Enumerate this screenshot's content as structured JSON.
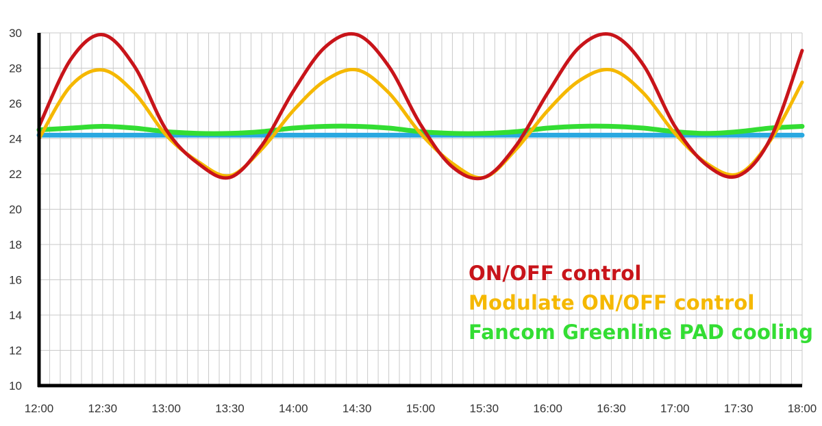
{
  "chart_data": {
    "type": "line",
    "title": "",
    "xlabel": "",
    "ylabel": "",
    "x_ticks": [
      "12:00",
      "12:30",
      "13:00",
      "13:30",
      "14:00",
      "14:30",
      "15:00",
      "15:30",
      "16:00",
      "16:30",
      "17:00",
      "17:30",
      "18:00"
    ],
    "xlim": [
      "12:00",
      "18:00"
    ],
    "y_ticks": [
      10,
      12,
      14,
      16,
      18,
      20,
      22,
      24,
      26,
      28,
      30
    ],
    "ylim": [
      10,
      30
    ],
    "grid": true,
    "legend_position": "bottom-right",
    "x": [
      "12:00",
      "12:15",
      "12:30",
      "12:45",
      "13:00",
      "13:15",
      "13:30",
      "13:45",
      "14:00",
      "14:15",
      "14:30",
      "14:45",
      "15:00",
      "15:15",
      "15:30",
      "15:45",
      "16:00",
      "16:15",
      "16:30",
      "16:45",
      "17:00",
      "17:15",
      "17:30",
      "17:45",
      "18:00"
    ],
    "series": [
      {
        "name": "ON/OFF control",
        "color": "#c8141a",
        "values": [
          24.7,
          28.5,
          29.9,
          28.1,
          24.5,
          22.6,
          21.8,
          23.6,
          26.7,
          29.2,
          29.9,
          28.1,
          24.8,
          22.4,
          21.8,
          23.6,
          26.6,
          29.2,
          29.9,
          28.2,
          24.7,
          22.5,
          21.9,
          24.0,
          29.0
        ]
      },
      {
        "name": "Modulate ON/OFF control",
        "color": "#f5b800",
        "values": [
          24.0,
          27.0,
          27.9,
          26.6,
          24.2,
          22.7,
          21.9,
          23.4,
          25.6,
          27.3,
          27.9,
          26.6,
          24.3,
          22.6,
          21.8,
          23.4,
          25.6,
          27.3,
          27.9,
          26.6,
          24.3,
          22.6,
          22.0,
          23.9,
          27.2
        ]
      },
      {
        "name": "Fancom Greenline PAD cooling",
        "color": "#33dd33",
        "values": [
          24.5,
          24.6,
          24.7,
          24.6,
          24.4,
          24.3,
          24.3,
          24.4,
          24.6,
          24.7,
          24.7,
          24.6,
          24.4,
          24.3,
          24.3,
          24.4,
          24.6,
          24.7,
          24.7,
          24.6,
          24.4,
          24.3,
          24.4,
          24.6,
          24.7
        ]
      },
      {
        "color": "#29a8e0",
        "values": [
          24.2,
          24.2,
          24.2,
          24.2,
          24.2,
          24.2,
          24.2,
          24.2,
          24.2,
          24.2,
          24.2,
          24.2,
          24.2,
          24.2,
          24.2,
          24.2,
          24.2,
          24.2,
          24.2,
          24.2,
          24.2,
          24.2,
          24.2,
          24.2,
          24.2
        ]
      }
    ]
  }
}
